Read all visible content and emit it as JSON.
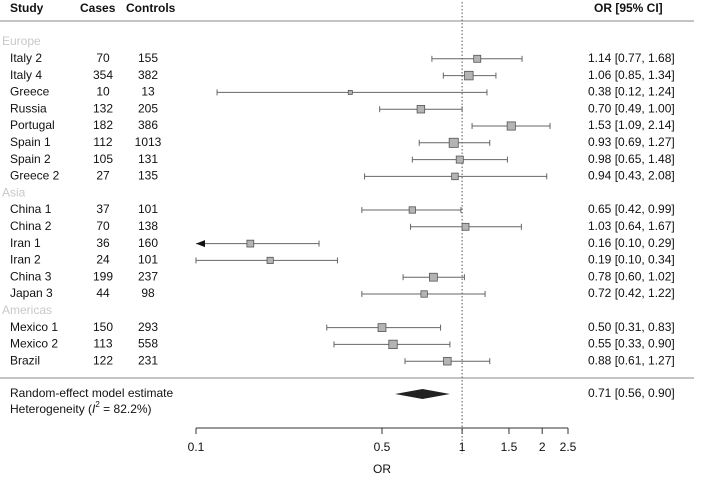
{
  "chart_data": {
    "type": "forest",
    "columns": {
      "study": "Study",
      "cases": "Cases",
      "controls": "Controls",
      "estimate": "OR [95% CI]"
    },
    "xlabel": "OR",
    "log_x": true,
    "xlim": [
      0.1,
      2.5
    ],
    "xticks": [
      0.1,
      0.5,
      1,
      1.5,
      2,
      2.5
    ],
    "reference": 1,
    "box_color": "#b4b4b4",
    "groups": [
      {
        "name": "Europe",
        "studies": [
          {
            "name": "Italy 2",
            "cases": 70,
            "controls": 155,
            "or": 1.14,
            "lower": 0.77,
            "upper": 1.68,
            "label": "1.14 [0.77, 1.68]"
          },
          {
            "name": "Italy 4",
            "cases": 354,
            "controls": 382,
            "or": 1.06,
            "lower": 0.85,
            "upper": 1.34,
            "label": "1.06 [0.85, 1.34]"
          },
          {
            "name": "Greece",
            "cases": 10,
            "controls": 13,
            "or": 0.38,
            "lower": 0.12,
            "upper": 1.24,
            "label": "0.38 [0.12, 1.24]"
          },
          {
            "name": "Russia",
            "cases": 132,
            "controls": 205,
            "or": 0.7,
            "lower": 0.49,
            "upper": 1.0,
            "label": "0.70 [0.49, 1.00]"
          },
          {
            "name": "Portugal",
            "cases": 182,
            "controls": 386,
            "or": 1.53,
            "lower": 1.09,
            "upper": 2.14,
            "label": "1.53 [1.09, 2.14]"
          },
          {
            "name": "Spain 1",
            "cases": 112,
            "controls": 1013,
            "or": 0.93,
            "lower": 0.69,
            "upper": 1.27,
            "label": "0.93 [0.69, 1.27]"
          },
          {
            "name": "Spain 2",
            "cases": 105,
            "controls": 131,
            "or": 0.98,
            "lower": 0.65,
            "upper": 1.48,
            "label": "0.98 [0.65, 1.48]"
          },
          {
            "name": "Greece 2",
            "cases": 27,
            "controls": 135,
            "or": 0.94,
            "lower": 0.43,
            "upper": 2.08,
            "label": "0.94 [0.43, 2.08]"
          }
        ]
      },
      {
        "name": "Asia",
        "studies": [
          {
            "name": "China 1",
            "cases": 37,
            "controls": 101,
            "or": 0.65,
            "lower": 0.42,
            "upper": 0.99,
            "label": "0.65 [0.42, 0.99]"
          },
          {
            "name": "China 2",
            "cases": 70,
            "controls": 138,
            "or": 1.03,
            "lower": 0.64,
            "upper": 1.67,
            "label": "1.03 [0.64, 1.67]"
          },
          {
            "name": "Iran 1",
            "cases": 36,
            "controls": 160,
            "or": 0.16,
            "lower": 0.1,
            "upper": 0.29,
            "label": "0.16 [0.10, 0.29]",
            "arrow_left": true
          },
          {
            "name": "Iran 2",
            "cases": 24,
            "controls": 101,
            "or": 0.19,
            "lower": 0.1,
            "upper": 0.34,
            "label": "0.19 [0.10, 0.34]"
          },
          {
            "name": "China 3",
            "cases": 199,
            "controls": 237,
            "or": 0.78,
            "lower": 0.6,
            "upper": 1.02,
            "label": "0.78 [0.60, 1.02]"
          },
          {
            "name": "Japan 3",
            "cases": 44,
            "controls": 98,
            "or": 0.72,
            "lower": 0.42,
            "upper": 1.22,
            "label": "0.72 [0.42, 1.22]"
          }
        ]
      },
      {
        "name": "Americas",
        "studies": [
          {
            "name": "Mexico 1",
            "cases": 150,
            "controls": 293,
            "or": 0.5,
            "lower": 0.31,
            "upper": 0.83,
            "label": "0.50 [0.31, 0.83]"
          },
          {
            "name": "Mexico 2",
            "cases": 113,
            "controls": 558,
            "or": 0.55,
            "lower": 0.33,
            "upper": 0.9,
            "label": "0.55 [0.33, 0.90]"
          },
          {
            "name": "Brazil",
            "cases": 122,
            "controls": 231,
            "or": 0.88,
            "lower": 0.61,
            "upper": 1.27,
            "label": "0.88 [0.61, 1.27]"
          }
        ]
      }
    ],
    "summary": {
      "name": "Random-effect model estimate",
      "or": 0.71,
      "lower": 0.56,
      "upper": 0.9,
      "label": "0.71 [0.56, 0.90]",
      "color": "#222222"
    },
    "heterogeneity": {
      "prefix": "Heterogeneity (",
      "symbol": "I",
      "exponent": "2",
      "suffix": " = 82.2%)"
    }
  }
}
